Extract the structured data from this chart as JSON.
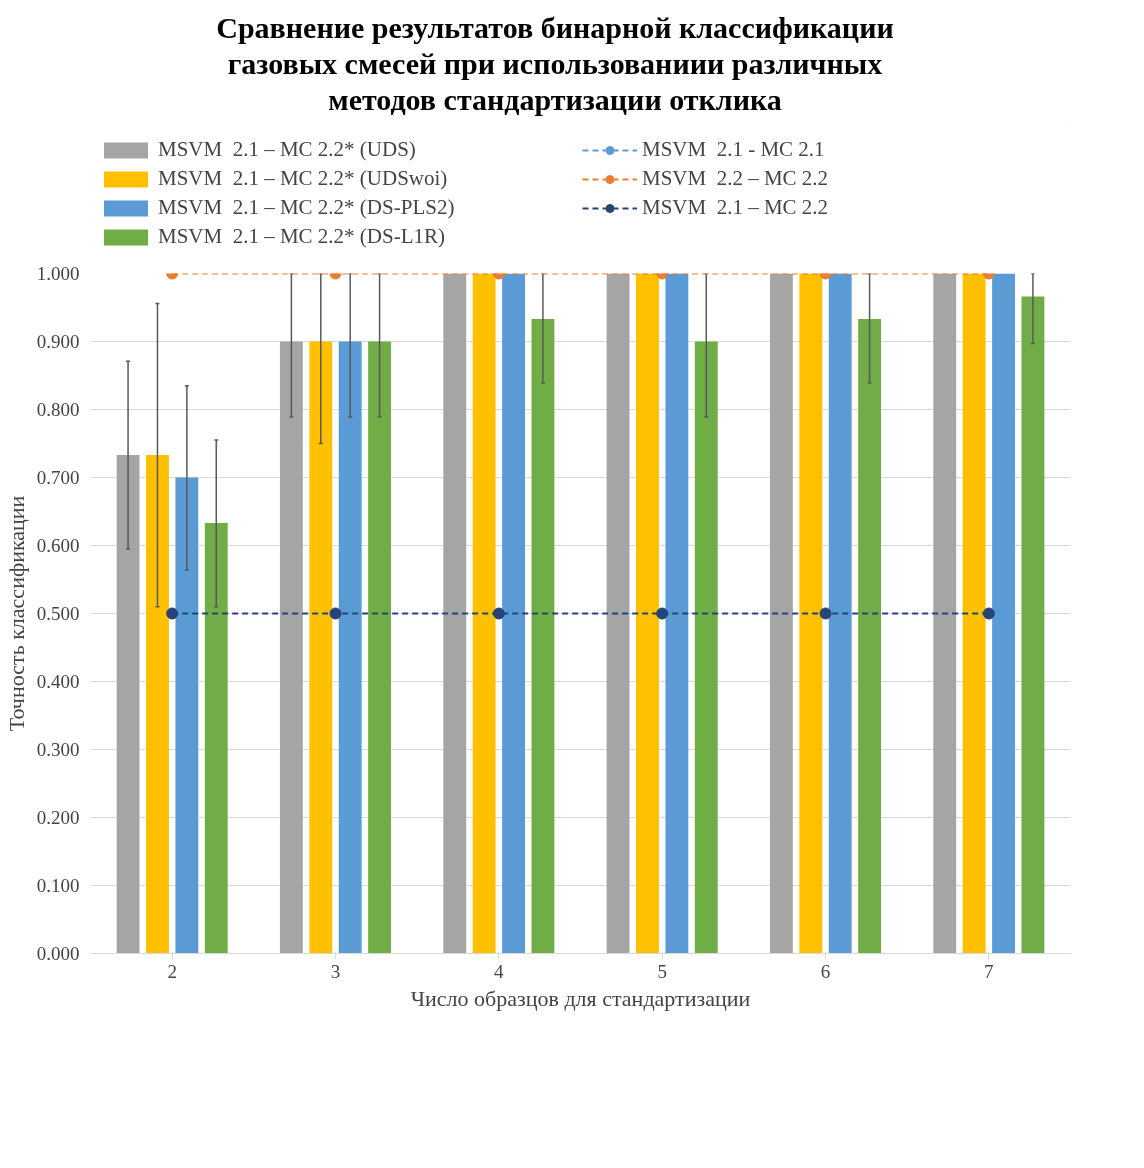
{
  "chart_data": {
    "type": "bar",
    "title": "Сравнение результатов бинарной классификации\nгазовых смесей при использованиии различных\nметодов стандартизации отклика",
    "xlabel": "Число образцов для стандартизации",
    "ylabel": "Точность классификации",
    "categories": [
      "2",
      "3",
      "4",
      "5",
      "6",
      "7"
    ],
    "ylim": [
      0,
      1
    ],
    "yticks": [
      {
        "value": 0,
        "label": "0.000"
      },
      {
        "value": 0.1,
        "label": "0.100"
      },
      {
        "value": 0.2,
        "label": "0.200"
      },
      {
        "value": 0.3,
        "label": "0.300"
      },
      {
        "value": 0.4,
        "label": "0.400"
      },
      {
        "value": 0.5,
        "label": "0.500"
      },
      {
        "value": 0.6,
        "label": "0.600"
      },
      {
        "value": 0.7,
        "label": "0.700"
      },
      {
        "value": 0.8,
        "label": "0.800"
      },
      {
        "value": 0.9,
        "label": "0.900"
      },
      {
        "value": 1,
        "label": "1.000"
      }
    ],
    "grid": "y",
    "legend": "top",
    "series": [
      {
        "name": "MSVM  2.1 – MC 2.2* (UDS)",
        "color": "#a5a5a5",
        "values": [
          0.733,
          0.9,
          1.0,
          1.0,
          1.0,
          1.0
        ],
        "errors": [
          [
            0.595,
            0.871
          ],
          [
            0.789,
            1.0
          ],
          null,
          null,
          null,
          null
        ]
      },
      {
        "name": "MSVM  2.1 – MC 2.2* (UDSwoi)",
        "color": "#ffc000",
        "values": [
          0.733,
          0.9,
          1.0,
          1.0,
          1.0,
          1.0
        ],
        "errors": [
          [
            0.51,
            0.956
          ],
          [
            0.75,
            1.0
          ],
          null,
          null,
          null,
          null
        ]
      },
      {
        "name": "MSVM  2.1 – MC 2.2* (DS-PLS2)",
        "color": "#5b9bd5",
        "values": [
          0.7,
          0.9,
          1.0,
          1.0,
          1.0,
          1.0
        ],
        "errors": [
          [
            0.564,
            0.835
          ],
          [
            0.789,
            1.0
          ],
          null,
          null,
          null,
          null
        ]
      },
      {
        "name": "MSVM  2.1 – MC 2.2* (DS-L1R)",
        "color": "#70ad47",
        "values": [
          0.633,
          0.9,
          0.933,
          0.9,
          0.933,
          0.966
        ],
        "errors": [
          [
            0.51,
            0.755
          ],
          [
            0.789,
            1.0
          ],
          [
            0.839,
            1.0
          ],
          [
            0.789,
            1.0
          ],
          [
            0.839,
            1.0
          ],
          [
            0.897,
            1.0
          ]
        ]
      },
      {
        "name": "MSVM  2.1 - MC 2.1",
        "type": "line",
        "marker": "circle",
        "line_style": "dashed",
        "color": "#5b9bd5",
        "values": [
          null,
          null,
          null,
          null,
          null,
          null
        ]
      },
      {
        "name": "MSVM  2.2 – MC 2.2",
        "type": "line",
        "marker": "circle",
        "line_style": "dashed",
        "color": "#ed7d31",
        "values": [
          1.0,
          1.0,
          1.0,
          1.0,
          1.0,
          1.0
        ]
      },
      {
        "name": "MSVM  2.1 – MC 2.2",
        "type": "line",
        "marker": "circle",
        "line_style": "dashed",
        "color": "#264478",
        "values": [
          0.5,
          0.5,
          0.5,
          0.5,
          0.5,
          0.5
        ]
      }
    ]
  }
}
